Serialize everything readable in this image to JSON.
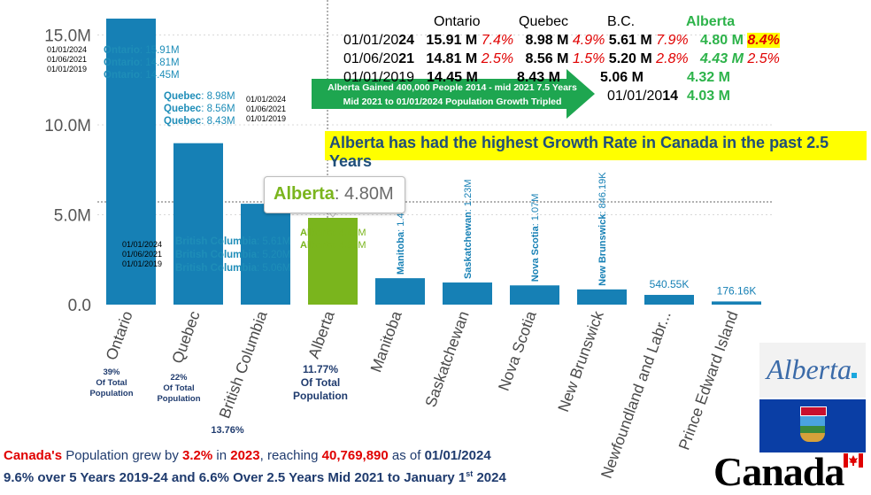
{
  "chart_data": {
    "type": "bar",
    "categories": [
      "Ontario",
      "Quebec",
      "British Columbia",
      "Alberta",
      "Manitoba",
      "Saskatchewan",
      "Nova Scotia",
      "New Brunswick",
      "Newfoundland and Labr...",
      "Prince Edward Island"
    ],
    "values": [
      15.91,
      8.98,
      5.61,
      4.8,
      1.47,
      1.23,
      1.07,
      0.846,
      0.541,
      0.176
    ],
    "highlight_index": 3,
    "ylim": [
      0,
      16.5
    ],
    "yticks": [
      {
        "v": 0,
        "label": "0.0"
      },
      {
        "v": 5,
        "label": "5.0M"
      },
      {
        "v": 10,
        "label": "10.0M"
      },
      {
        "v": 15,
        "label": "15.0M"
      }
    ],
    "data_labels": [
      "",
      "",
      "",
      "",
      "Manitoba: 1.47M",
      "Saskatchewan: 1.23M",
      "Nova Scotia: 1.07M",
      "New Brunswick: 846.19K",
      "540.55K",
      "176.16K"
    ],
    "colors": {
      "bar": "#1680b5",
      "highlight": "#7ab51d",
      "axis_text": "#555555"
    }
  },
  "tooltip": {
    "name": "Alberta",
    "value": "4.80M"
  },
  "table": {
    "headers": [
      "Ontario",
      "Quebec",
      "B.C.",
      "Alberta"
    ],
    "rows": [
      {
        "date_a": "01/01/20",
        "date_b": "24",
        "on": "15.91 M",
        "on_p": "7.4%",
        "qc": "8.98 M",
        "qc_p": "4.9%",
        "bc": "5.61 M",
        "bc_p": "7.9%",
        "ab": "4.80 M",
        "ab_p": "8.4%"
      },
      {
        "date_a": "01/06/20",
        "date_b": "21",
        "on": "14.81 M",
        "on_p": "2.5%",
        "qc": "8.56 M",
        "qc_p": "1.5%",
        "bc": "5.20 M",
        "bc_p": "2.8%",
        "ab": "4.43 M",
        "ab_p": "2.5%"
      },
      {
        "date_a": "01/01/20",
        "date_b": "19",
        "on": "14.45 M",
        "qc": "8.43 M",
        "bc": "5.06 M",
        "ab": "4.32 M"
      }
    ],
    "extra_date_a": "01/01/20",
    "extra_date_b": "14",
    "extra_ab": "4.03 M"
  },
  "arrow": {
    "line1": "Alberta Gained 400,000 People 2014 - mid 2021 7.5 Years",
    "line2": "Mid 2021 to 01/01/2024 Population Growth Tripled"
  },
  "headline": "Alberta has had the highest Growth Rate in Canada in the past 2.5 Years",
  "ontario_annot": {
    "dates": [
      "01/01/2024",
      "01/06/2021",
      "01/01/2019"
    ],
    "labels": [
      "Ontario",
      "Ontario",
      "Ontario"
    ],
    "values": [
      ": 15.91M",
      ": 14.81M",
      ": 14.45M"
    ]
  },
  "quebec_annot": {
    "dates": [
      "01/01/2024",
      "01/06/2021",
      "01/01/2019"
    ],
    "labels": [
      "Quebec",
      "Quebec",
      "Quebec"
    ],
    "values": [
      ": 8.98M",
      ": 8.56M",
      ": 8.43M"
    ]
  },
  "bc_annot": {
    "dates": [
      "01/01/2024",
      "01/06/2021",
      "01/01/2019"
    ],
    "labels": [
      "British Columbia",
      "British Columbia",
      "British Columbia"
    ],
    "values": [
      ": 5.61M",
      ": 5.20M",
      ": 5.06M"
    ]
  },
  "alberta_annot": {
    "labels": [
      "Alberta",
      "Alberta"
    ],
    "values": [
      ": 4.43M",
      ": 4.32M"
    ]
  },
  "share": {
    "ontario": [
      "39%",
      "Of Total",
      "Population"
    ],
    "quebec": [
      "22%",
      "Of Total",
      "Population"
    ],
    "bc": "13.76%",
    "alberta": [
      "11.77%",
      "Of Total",
      "Population"
    ]
  },
  "bottom": {
    "l1_a": "Canada's",
    "l1_b": " Population grew by ",
    "l1_c": "3.2%",
    "l1_d": " in ",
    "l1_e": "2023",
    "l1_f": ", reaching ",
    "l1_g": "40,769,890",
    "l1_h": " as of ",
    "l1_i": "01/01/2024",
    "l2_a": "9.6% over 5 Years 2019-24 and 6.6% Over 2.5 Years Mid 2021 to January 1",
    "l2_sup": "st",
    "l2_b": " 2024"
  },
  "logos": {
    "alberta": "Alberta",
    "canada": "Canada"
  }
}
